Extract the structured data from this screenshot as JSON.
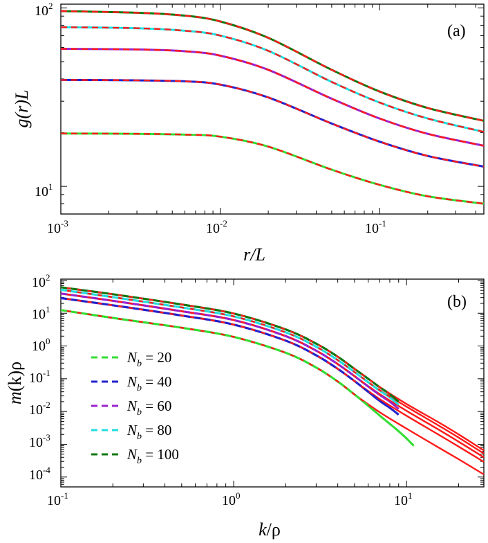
{
  "chart_data": [
    {
      "panel": "a",
      "type": "line",
      "panel_label": "(a)",
      "xlabel_main": "r",
      "xlabel_rest": "/L",
      "ylabel": "g(r)L",
      "xscale": "log",
      "yscale": "log",
      "xlim": [
        0.001,
        0.45
      ],
      "ylim": [
        7,
        105
      ],
      "x_ticks": [
        {
          "base": "10",
          "exp": "-3"
        },
        {
          "base": "10",
          "exp": "-2"
        },
        {
          "base": "10",
          "exp": "-1"
        }
      ],
      "y_ticks": [
        {
          "base": "10",
          "exp": "1"
        },
        {
          "base": "10",
          "exp": "2"
        }
      ],
      "series": [
        {
          "name": "N_b = 20",
          "color": "#33dd33",
          "x": [
            0.001,
            0.003,
            0.006,
            0.01,
            0.02,
            0.05,
            0.1,
            0.2,
            0.45
          ],
          "y": [
            19.8,
            19.7,
            19.5,
            19.0,
            16.7,
            12.4,
            10.2,
            8.8,
            8.0
          ]
        },
        {
          "name": "N_b = 40",
          "color": "#2222cc",
          "x": [
            0.001,
            0.003,
            0.006,
            0.01,
            0.02,
            0.05,
            0.1,
            0.2,
            0.45
          ],
          "y": [
            39.5,
            39.3,
            38.8,
            37.2,
            31.5,
            22.5,
            17.8,
            14.8,
            12.9
          ]
        },
        {
          "name": "N_b = 60",
          "color": "#9922cc",
          "x": [
            0.001,
            0.003,
            0.006,
            0.01,
            0.02,
            0.05,
            0.1,
            0.2,
            0.45
          ],
          "y": [
            59.0,
            58.5,
            57.2,
            54.0,
            45.0,
            31.0,
            24.0,
            19.7,
            16.9
          ]
        },
        {
          "name": "N_b = 80",
          "color": "#22dddd",
          "x": [
            0.001,
            0.003,
            0.006,
            0.01,
            0.02,
            0.05,
            0.1,
            0.2,
            0.45
          ],
          "y": [
            78.0,
            77.0,
            74.5,
            70.0,
            57.5,
            38.5,
            29.5,
            24.0,
            20.2
          ]
        },
        {
          "name": "N_b = 100",
          "color": "#117711",
          "x": [
            0.001,
            0.003,
            0.006,
            0.01,
            0.02,
            0.05,
            0.1,
            0.2,
            0.45
          ],
          "y": [
            96.0,
            94.0,
            90.5,
            84.0,
            68.0,
            45.0,
            34.0,
            27.5,
            23.3
          ]
        }
      ],
      "reference_color": "#ff1a1a"
    },
    {
      "panel": "b",
      "type": "line",
      "panel_label": "(b)",
      "xlabel_main": "k",
      "xlabel_rest": "/ρ",
      "ylabel_main": "m",
      "ylabel_rest": "(k)ρ",
      "xscale": "log",
      "yscale": "log",
      "xlim": [
        0.1,
        28
      ],
      "ylim": [
        5e-05,
        110
      ],
      "x_ticks": [
        {
          "base": "10",
          "exp": "-1"
        },
        {
          "base": "10",
          "exp": "0"
        },
        {
          "base": "10",
          "exp": "1"
        }
      ],
      "y_ticks": [
        {
          "base": "10",
          "exp": "2"
        },
        {
          "base": "10",
          "exp": "1"
        },
        {
          "base": "10",
          "exp": "0"
        },
        {
          "base": "10",
          "exp": "-1"
        },
        {
          "base": "10",
          "exp": "-2"
        },
        {
          "base": "10",
          "exp": "-3"
        },
        {
          "base": "10",
          "exp": "-4"
        }
      ],
      "series": [
        {
          "name": "N_b = 20",
          "color": "#33dd33",
          "x": [
            0.1,
            0.2,
            0.5,
            1,
            2,
            3,
            4,
            5,
            6,
            7,
            8,
            9,
            10,
            11
          ],
          "y": [
            12.5,
            7.2,
            3.6,
            1.9,
            0.62,
            0.22,
            0.082,
            0.033,
            0.015,
            0.0075,
            0.0042,
            0.0025,
            0.0015,
            0.0009
          ],
          "ref_x": [
            0.1,
            0.2,
            0.5,
            1,
            2,
            3,
            4,
            5,
            7,
            10,
            15,
            20,
            28
          ],
          "ref_y": [
            12.5,
            7.2,
            3.6,
            1.9,
            0.62,
            0.22,
            0.082,
            0.033,
            0.0095,
            0.003,
            0.00085,
            0.00035,
            0.00012
          ]
        },
        {
          "name": "N_b = 40",
          "color": "#2222cc",
          "x": [
            0.1,
            0.2,
            0.5,
            1,
            2,
            3,
            4,
            5,
            6,
            7,
            8,
            9
          ],
          "y": [
            29,
            17.5,
            8.5,
            4.5,
            1.45,
            0.52,
            0.2,
            0.085,
            0.04,
            0.021,
            0.013,
            0.008
          ],
          "ref_x": [
            0.1,
            0.2,
            0.5,
            1,
            2,
            3,
            4,
            5,
            7,
            10,
            15,
            20,
            28
          ],
          "ref_y": [
            29,
            17.5,
            8.5,
            4.5,
            1.45,
            0.52,
            0.2,
            0.085,
            0.024,
            0.0074,
            0.0021,
            0.00085,
            0.00029
          ]
        },
        {
          "name": "N_b = 60",
          "color": "#9922cc",
          "x": [
            0.1,
            0.2,
            0.5,
            1,
            2,
            3,
            4,
            5,
            6,
            7,
            8,
            9
          ],
          "y": [
            40,
            24,
            11.5,
            6.2,
            2.0,
            0.72,
            0.28,
            0.12,
            0.058,
            0.032,
            0.02,
            0.012
          ],
          "ref_x": [
            0.1,
            0.2,
            0.5,
            1,
            2,
            3,
            4,
            5,
            7,
            10,
            15,
            20,
            28
          ],
          "ref_y": [
            40,
            24,
            11.5,
            6.2,
            2.0,
            0.72,
            0.28,
            0.12,
            0.034,
            0.0105,
            0.003,
            0.0012,
            0.0004
          ]
        },
        {
          "name": "N_b = 80",
          "color": "#22dddd",
          "x": [
            0.1,
            0.2,
            0.5,
            1,
            2,
            3,
            4,
            5,
            6,
            7,
            8,
            9
          ],
          "y": [
            52,
            31,
            15,
            8.0,
            2.6,
            0.95,
            0.37,
            0.16,
            0.078,
            0.043,
            0.027,
            0.016
          ],
          "ref_x": [
            0.1,
            0.2,
            0.5,
            1,
            2,
            3,
            4,
            5,
            7,
            10,
            15,
            20,
            28
          ],
          "ref_y": [
            52,
            31,
            15,
            8.0,
            2.6,
            0.95,
            0.37,
            0.16,
            0.045,
            0.014,
            0.004,
            0.0016,
            0.00052
          ]
        },
        {
          "name": "N_b = 100",
          "color": "#117711",
          "x": [
            0.1,
            0.2,
            0.5,
            1,
            2,
            3,
            4,
            5,
            6,
            7,
            8,
            9
          ],
          "y": [
            62,
            38,
            18.5,
            9.8,
            3.2,
            1.18,
            0.47,
            0.2,
            0.1,
            0.055,
            0.034,
            0.02
          ],
          "ref_x": [
            0.1,
            0.2,
            0.5,
            1,
            2,
            3,
            4,
            5,
            7,
            10,
            15,
            20,
            28
          ],
          "ref_y": [
            62,
            38,
            18.5,
            9.8,
            3.2,
            1.18,
            0.47,
            0.2,
            0.056,
            0.017,
            0.005,
            0.002,
            0.00065
          ]
        }
      ],
      "reference_color": "#ff1a1a",
      "legend": {
        "placement": "lower-left",
        "entries": [
          {
            "sym": "N",
            "sub": "b",
            "rest": " = 20",
            "color": "#33dd33"
          },
          {
            "sym": "N",
            "sub": "b",
            "rest": " = 40",
            "color": "#2222cc"
          },
          {
            "sym": "N",
            "sub": "b",
            "rest": " = 60",
            "color": "#9922cc"
          },
          {
            "sym": "N",
            "sub": "b",
            "rest": " = 80",
            "color": "#22dddd"
          },
          {
            "sym": "N",
            "sub": "b",
            "rest": " = 100",
            "color": "#117711"
          }
        ]
      }
    }
  ]
}
